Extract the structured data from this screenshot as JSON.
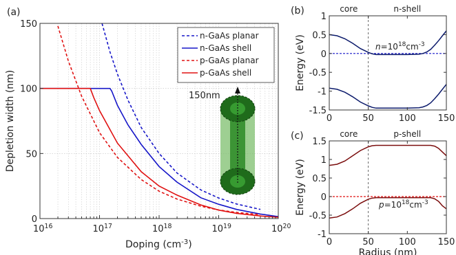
{
  "chart_data": [
    {
      "panel": "(a)",
      "type": "line",
      "xscale": "log",
      "xlabel": "Doping (cm",
      "xlabel_sup": "-3",
      "xlabel_end": ")",
      "ylabel": "Depletion width (nm)",
      "xlim": [
        1e+16,
        1e+20
      ],
      "ylim": [
        0,
        150
      ],
      "x_ticks": [
        {
          "base": "10",
          "exp": "16",
          "value": 1e+16
        },
        {
          "base": "10",
          "exp": "17",
          "value": 1e+17
        },
        {
          "base": "10",
          "exp": "18",
          "value": 1e+18
        },
        {
          "base": "10",
          "exp": "19",
          "value": 1e+19
        },
        {
          "base": "10",
          "exp": "20",
          "value": 1e+20
        }
      ],
      "y_ticks": [
        "0",
        "50",
        "100",
        "150"
      ],
      "grid": true,
      "legend_position": "top-right",
      "series": [
        {
          "name": "n-GaAs planar",
          "color": "#1515c8",
          "dash": true,
          "x": [
            1.1e+17,
            1.5e+17,
            2e+17,
            3e+17,
            5e+17,
            1e+18,
            2e+18,
            5e+18,
            1e+19,
            2e+19,
            5e+19
          ],
          "y": [
            150,
            128,
            111,
            91,
            70,
            50,
            35,
            22,
            15.8,
            11.2,
            7
          ]
        },
        {
          "name": "n-GaAs shell",
          "color": "#1515c8",
          "dash": false,
          "x": [
            1e+16,
            5e+16,
            1.5e+17,
            1.6e+17,
            2e+17,
            3e+17,
            5e+17,
            1e+18,
            2e+18,
            5e+18,
            1e+19,
            2e+19,
            5e+19,
            1e+20
          ],
          "y": [
            100,
            100,
            100,
            98,
            87,
            72,
            57,
            40,
            28,
            16,
            11,
            7,
            3.5,
            1.5
          ]
        },
        {
          "name": "p-GaAs planar",
          "color": "#e01010",
          "dash": true,
          "x": [
            2e+16,
            3e+16,
            5e+16,
            1e+17,
            2e+17,
            5e+17,
            1e+18,
            2e+18,
            5e+18,
            1e+19,
            2e+19,
            5e+19
          ],
          "y": [
            148,
            121,
            94,
            66,
            47,
            30,
            21,
            15,
            9.5,
            6.6,
            4.7,
            3
          ]
        },
        {
          "name": "p-GaAs shell",
          "color": "#e01010",
          "dash": false,
          "x": [
            1e+16,
            5e+16,
            7e+16,
            8e+16,
            1e+17,
            2e+17,
            5e+17,
            1e+18,
            2e+18,
            5e+18,
            1e+19,
            2e+19,
            5e+19,
            1e+20
          ],
          "y": [
            100,
            100,
            100,
            93,
            83,
            58,
            36,
            25,
            18,
            10.5,
            6.5,
            4,
            2,
            1
          ]
        }
      ],
      "annotation": "150nm",
      "colors": {
        "core_green": "#2a8a25",
        "shell_green": "#7dbf6e",
        "cap_green": "#1f6b1b"
      }
    },
    {
      "panel": "(b)",
      "type": "line",
      "ylabel": "Energy (eV)",
      "xlim": [
        0,
        150
      ],
      "ylim": [
        -1.5,
        1
      ],
      "x_ticks": [
        "0",
        "50",
        "100",
        "150"
      ],
      "y_ticks": [
        "-1.5",
        "-1",
        "-0.5",
        "0",
        "0.5",
        "1"
      ],
      "region_left": "core",
      "region_right": "n-shell",
      "boundary_x": 50,
      "label_var": "n",
      "label_mid": "=10",
      "label_exp": "18",
      "label_unit": "cm",
      "label_unit_exp": "-3",
      "label_color": "#1515c8",
      "curve_color": "#0b1a6b",
      "fermi_color": "#1515c8",
      "fermi_level": 0,
      "series": [
        {
          "x": [
            0,
            10,
            20,
            30,
            40,
            50,
            55,
            60,
            100,
            115,
            120,
            125,
            130,
            135,
            140,
            145,
            150
          ],
          "y": [
            0.5,
            0.47,
            0.39,
            0.27,
            0.13,
            0.03,
            -0.01,
            -0.03,
            -0.03,
            -0.02,
            0,
            0.04,
            0.11,
            0.22,
            0.34,
            0.47,
            0.6
          ]
        },
        {
          "x": [
            0,
            10,
            20,
            30,
            40,
            50,
            55,
            60,
            100,
            115,
            120,
            125,
            130,
            135,
            140,
            145,
            150
          ],
          "y": [
            -0.92,
            -0.95,
            -1.03,
            -1.15,
            -1.29,
            -1.39,
            -1.43,
            -1.45,
            -1.45,
            -1.44,
            -1.42,
            -1.38,
            -1.31,
            -1.2,
            -1.08,
            -0.95,
            -0.82
          ]
        }
      ]
    },
    {
      "panel": "(c)",
      "type": "line",
      "xlabel": "Radius (nm)",
      "ylabel": "Energy (eV)",
      "xlim": [
        0,
        150
      ],
      "ylim": [
        -1,
        1.5
      ],
      "x_ticks": [
        "0",
        "50",
        "100",
        "150"
      ],
      "y_ticks": [
        "-1",
        "-0.5",
        "0",
        "0.5",
        "1",
        "1.5"
      ],
      "region_left": "core",
      "region_right": "p-shell",
      "boundary_x": 50,
      "label_var": "p",
      "label_mid": "=10",
      "label_exp": "18",
      "label_unit": "cm",
      "label_unit_exp": "-3",
      "label_color": "#e01010",
      "curve_color": "#7a0c0c",
      "fermi_color": "#e01010",
      "fermi_level": 0,
      "series": [
        {
          "x": [
            0,
            10,
            20,
            30,
            40,
            50,
            55,
            60,
            130,
            135,
            140,
            145,
            150
          ],
          "y": [
            0.84,
            0.87,
            0.96,
            1.1,
            1.24,
            1.34,
            1.37,
            1.38,
            1.38,
            1.36,
            1.3,
            1.2,
            1.1
          ]
        },
        {
          "x": [
            0,
            10,
            20,
            30,
            40,
            50,
            55,
            60,
            130,
            135,
            140,
            145,
            150
          ],
          "y": [
            -0.58,
            -0.55,
            -0.46,
            -0.33,
            -0.18,
            -0.07,
            -0.04,
            -0.03,
            -0.03,
            -0.06,
            -0.13,
            -0.25,
            -0.33
          ]
        }
      ]
    }
  ]
}
